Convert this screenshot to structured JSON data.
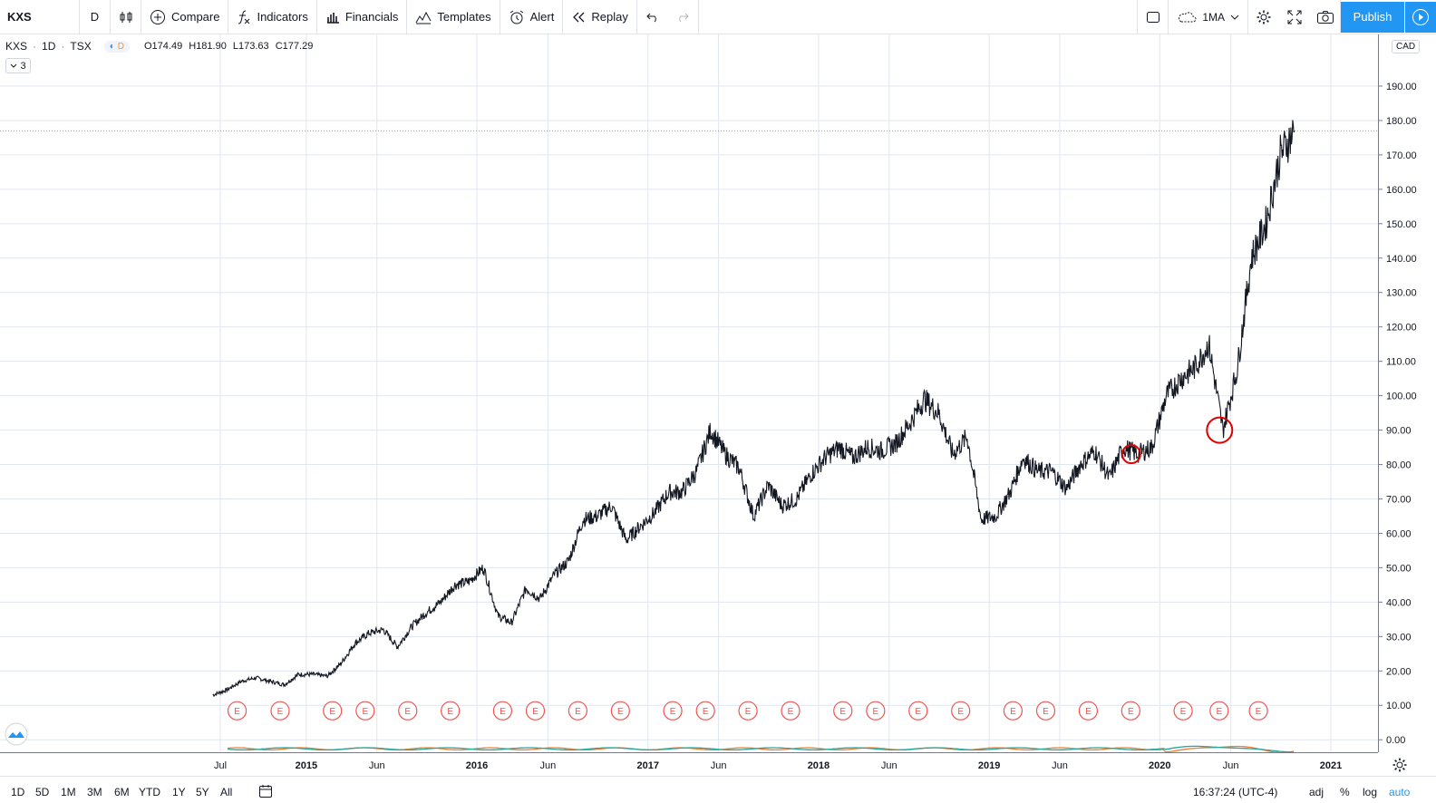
{
  "toolbar": {
    "symbol": "KXS",
    "interval": "D",
    "compare": "Compare",
    "indicators": "Indicators",
    "financials": "Financials",
    "templates": "Templates",
    "alert": "Alert",
    "replay": "Replay",
    "layout": "1MA",
    "publish": "Publish"
  },
  "legend": {
    "symbol": "KXS",
    "interval": "1D",
    "exchange": "TSX",
    "badge_d": "D",
    "open": "O174.49",
    "high": "H181.90",
    "low": "L173.63",
    "close": "C177.29",
    "collapsed_count": "3"
  },
  "currency": "CAD",
  "bottom_bar": {
    "ranges": [
      "1D",
      "5D",
      "1M",
      "3M",
      "6M",
      "YTD",
      "1Y",
      "5Y",
      "All"
    ],
    "clock": "16:37:24 (UTC-4)",
    "adj": "adj",
    "percent": "%",
    "log": "log",
    "auto": "auto"
  },
  "colors": {
    "line": "#131722",
    "grid": "#e0e6f0",
    "earnings": "#ef5350",
    "accent": "#2196f3",
    "highlight_circle": "#e00000"
  },
  "chart_data": {
    "type": "line",
    "title": "KXS · 1D · TSX",
    "xlabel": "",
    "ylabel": "",
    "ylim": [
      -1,
      195
    ],
    "y_ticks": [
      "190.00",
      "180.00",
      "170.00",
      "160.00",
      "150.00",
      "140.00",
      "130.00",
      "120.00",
      "110.00",
      "100.00",
      "90.00",
      "80.00",
      "70.00",
      "60.00",
      "50.00",
      "40.00",
      "30.00",
      "20.00",
      "10.00",
      "0.00",
      "0.00"
    ],
    "x_ticks": [
      {
        "date": "2014-07-01",
        "label": "Jul",
        "bold": false
      },
      {
        "date": "2015-01-01",
        "label": "2015",
        "bold": true
      },
      {
        "date": "2015-06-01",
        "label": "Jun",
        "bold": false
      },
      {
        "date": "2016-01-01",
        "label": "2016",
        "bold": true
      },
      {
        "date": "2016-06-01",
        "label": "Jun",
        "bold": false
      },
      {
        "date": "2017-01-01",
        "label": "2017",
        "bold": true
      },
      {
        "date": "2017-06-01",
        "label": "Jun",
        "bold": false
      },
      {
        "date": "2018-01-01",
        "label": "2018",
        "bold": true
      },
      {
        "date": "2018-06-01",
        "label": "Jun",
        "bold": false
      },
      {
        "date": "2019-01-01",
        "label": "2019",
        "bold": true
      },
      {
        "date": "2019-06-01",
        "label": "Jun",
        "bold": false
      },
      {
        "date": "2020-01-01",
        "label": "2020",
        "bold": true
      },
      {
        "date": "2020-06-01",
        "label": "Jun",
        "bold": false
      },
      {
        "date": "2021-01-01",
        "label": "2021",
        "bold": true
      }
    ],
    "series": [
      {
        "values": [
          [
            "2014-06-15",
            13
          ],
          [
            "2014-07-15",
            14.5
          ],
          [
            "2014-08-15",
            17
          ],
          [
            "2014-09-15",
            18
          ],
          [
            "2014-10-15",
            17
          ],
          [
            "2014-11-15",
            16
          ],
          [
            "2014-12-15",
            19
          ],
          [
            "2015-01-15",
            19
          ],
          [
            "2015-02-15",
            18.5
          ],
          [
            "2015-03-15",
            22
          ],
          [
            "2015-04-15",
            28
          ],
          [
            "2015-05-15",
            31
          ],
          [
            "2015-06-15",
            32
          ],
          [
            "2015-07-15",
            27
          ],
          [
            "2015-08-15",
            33
          ],
          [
            "2015-09-15",
            37
          ],
          [
            "2015-10-15",
            40
          ],
          [
            "2015-11-15",
            45
          ],
          [
            "2015-12-15",
            46
          ],
          [
            "2016-01-15",
            50
          ],
          [
            "2016-02-15",
            36
          ],
          [
            "2016-03-15",
            34
          ],
          [
            "2016-04-15",
            44
          ],
          [
            "2016-05-15",
            41
          ],
          [
            "2016-06-15",
            48
          ],
          [
            "2016-07-15",
            52
          ],
          [
            "2016-08-15",
            64
          ],
          [
            "2016-09-15",
            65
          ],
          [
            "2016-10-15",
            68
          ],
          [
            "2016-11-15",
            58
          ],
          [
            "2016-12-15",
            62
          ],
          [
            "2017-01-15",
            66
          ],
          [
            "2017-02-15",
            72
          ],
          [
            "2017-03-15",
            72
          ],
          [
            "2017-04-15",
            78
          ],
          [
            "2017-05-15",
            90
          ],
          [
            "2017-06-15",
            83
          ],
          [
            "2017-07-15",
            79
          ],
          [
            "2017-08-15",
            65
          ],
          [
            "2017-09-15",
            74
          ],
          [
            "2017-10-15",
            68
          ],
          [
            "2017-11-15",
            70
          ],
          [
            "2017-12-15",
            77
          ],
          [
            "2018-01-15",
            82
          ],
          [
            "2018-02-15",
            85
          ],
          [
            "2018-03-15",
            82
          ],
          [
            "2018-04-15",
            85
          ],
          [
            "2018-05-15",
            84
          ],
          [
            "2018-06-15",
            86
          ],
          [
            "2018-07-15",
            92
          ],
          [
            "2018-08-15",
            99
          ],
          [
            "2018-09-15",
            95
          ],
          [
            "2018-10-15",
            83
          ],
          [
            "2018-11-15",
            88
          ],
          [
            "2018-12-15",
            64
          ],
          [
            "2019-01-15",
            65
          ],
          [
            "2019-02-15",
            72
          ],
          [
            "2019-03-15",
            82
          ],
          [
            "2019-04-15",
            78
          ],
          [
            "2019-05-15",
            78
          ],
          [
            "2019-06-15",
            73
          ],
          [
            "2019-07-15",
            80
          ],
          [
            "2019-08-15",
            84
          ],
          [
            "2019-09-15",
            76
          ],
          [
            "2019-10-15",
            85
          ],
          [
            "2019-11-15",
            83
          ],
          [
            "2019-12-15",
            85
          ],
          [
            "2020-01-15",
            100
          ],
          [
            "2020-02-15",
            105
          ],
          [
            "2020-03-15",
            108
          ],
          [
            "2020-04-15",
            115
          ],
          [
            "2020-05-15",
            90
          ],
          [
            "2020-06-15",
            108
          ],
          [
            "2020-07-15",
            140
          ],
          [
            "2020-08-15",
            150
          ],
          [
            "2020-09-15",
            170
          ],
          [
            "2020-10-15",
            177
          ]
        ]
      }
    ],
    "earnings_label": "E",
    "earnings_dates": [
      "2014-08-06",
      "2014-11-06",
      "2015-02-26",
      "2015-05-07",
      "2015-08-06",
      "2015-11-05",
      "2016-02-25",
      "2016-05-05",
      "2016-08-04",
      "2016-11-03",
      "2017-02-23",
      "2017-05-04",
      "2017-08-03",
      "2017-11-02",
      "2018-02-22",
      "2018-05-03",
      "2018-08-02",
      "2018-11-01",
      "2019-02-21",
      "2019-05-02",
      "2019-08-01",
      "2019-10-31",
      "2020-02-20",
      "2020-05-07",
      "2020-07-30"
    ],
    "highlight_dates": [
      "2019-11-01",
      "2020-05-08"
    ]
  }
}
